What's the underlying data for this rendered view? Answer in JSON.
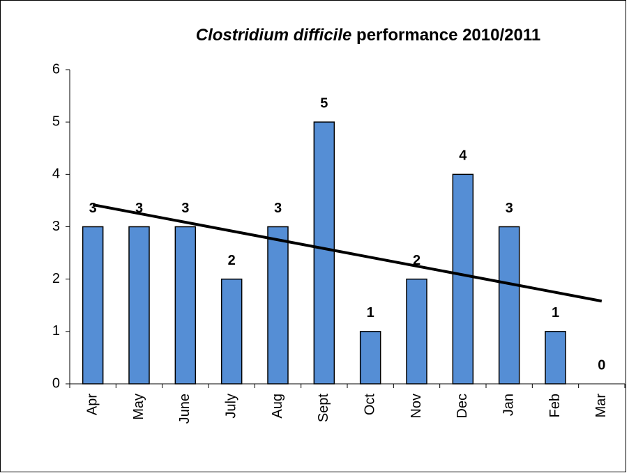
{
  "chart_data": {
    "type": "bar",
    "title": [
      "Clostridium difficile",
      "performance 2010/2011"
    ],
    "categories": [
      "Apr",
      "May",
      "June",
      "July",
      "Aug",
      "Sept",
      "Oct",
      "Nov",
      "Dec",
      "Jan",
      "Feb",
      "Mar"
    ],
    "values": [
      3,
      3,
      3,
      2,
      3,
      5,
      1,
      2,
      4,
      3,
      1,
      0
    ],
    "color": "#558ed5",
    "trend": [
      3.42,
      1.58
    ],
    "ylim": [
      0,
      6
    ],
    "yticks": [
      0,
      1,
      2,
      3,
      4,
      5,
      6
    ],
    "grid": false
  }
}
